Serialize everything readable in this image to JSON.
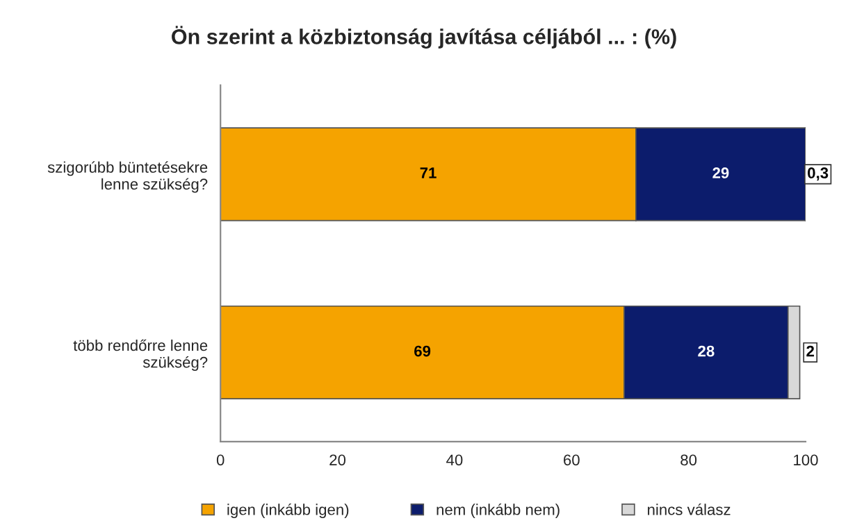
{
  "chart_data": {
    "type": "bar",
    "orientation": "horizontal",
    "stacked": true,
    "title": "Ön szerint a közbiztonság javítása céljából ... : (%)",
    "categories": [
      "szigorúbb büntetésekre\nlenne szükség?",
      "több rendőrre lenne\nszükség?"
    ],
    "series": [
      {
        "name": "igen (inkább igen)",
        "color": "#f5a300",
        "values": [
          71,
          69
        ],
        "value_labels": [
          "71",
          "69"
        ]
      },
      {
        "name": "nem (inkább nem)",
        "color": "#0c1c6c",
        "values": [
          29,
          28
        ],
        "value_labels": [
          "29",
          "28"
        ]
      },
      {
        "name": "nincs válasz",
        "color": "#d8d8d8",
        "values": [
          0.3,
          2
        ],
        "value_labels": [
          "0,3",
          "2"
        ]
      }
    ],
    "xlim": [
      0,
      100
    ],
    "xticks": [
      0,
      20,
      40,
      60,
      80,
      100
    ],
    "grid": false,
    "legend": "bottom"
  }
}
